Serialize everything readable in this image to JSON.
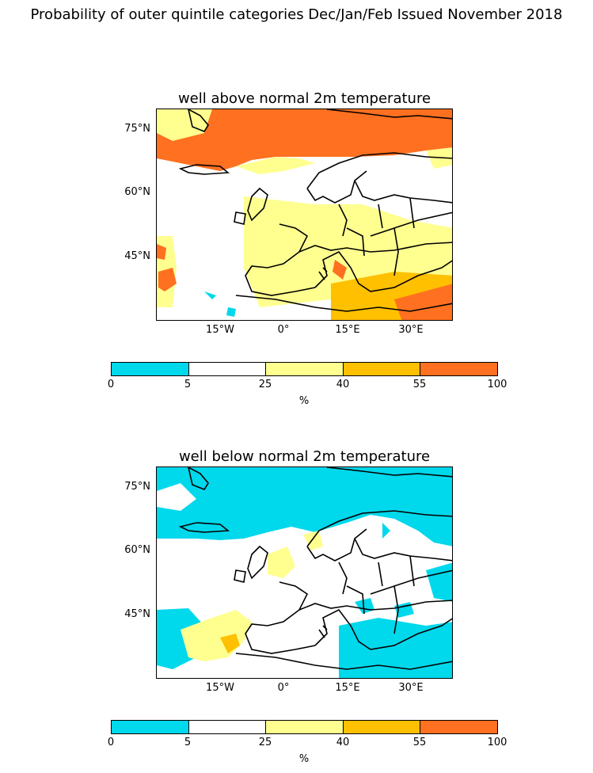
{
  "figure_title": "Probability of outer quintile categories Dec/Jan/Feb Issued November 2018",
  "panels": [
    {
      "title": "well above normal 2m temperature",
      "lat_ticks": [
        "75°N",
        "60°N",
        "45°N"
      ],
      "lon_ticks": [
        "15°W",
        "0°",
        "15°E",
        "30°E"
      ]
    },
    {
      "title": "well below normal 2m temperature",
      "lat_ticks": [
        "75°N",
        "60°N",
        "45°N"
      ],
      "lon_ticks": [
        "15°W",
        "0°",
        "15°E",
        "30°E"
      ]
    }
  ],
  "colorbar": {
    "ticks": [
      "0",
      "5",
      "25",
      "40",
      "55",
      "100"
    ],
    "unit": "%",
    "colors": [
      "#00d8ec",
      "#ffffff",
      "#ffff90",
      "#ffc000",
      "#ff7020"
    ]
  },
  "region": {
    "lon_range": [
      -30,
      40
    ],
    "lat_range": [
      30,
      80
    ]
  }
}
